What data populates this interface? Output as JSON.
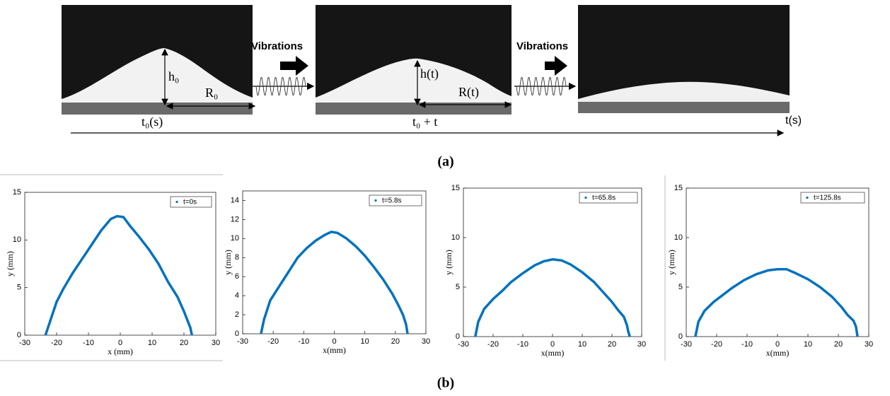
{
  "panel_a": {
    "vibrations_1": "Vibrations",
    "vibrations_2": "Vibrations",
    "h0": "h₀",
    "r0": "R₀",
    "ht": "h(t)",
    "rt": "R(t)",
    "t0": "t₀(s)",
    "t0_plus_t": "t₀ + t",
    "t_axis": "t(s)"
  },
  "captions": {
    "a": "(a)",
    "b": "(b)"
  },
  "chart_data": [
    {
      "type": "line",
      "xlabel": "x (mm)",
      "ylabel": "y (mm)",
      "xlim": [
        -30,
        30
      ],
      "xticks": [
        -30,
        -20,
        -10,
        0,
        10,
        20,
        30
      ],
      "ylim": [
        0,
        15
      ],
      "yticks": [
        0,
        5,
        10,
        15
      ],
      "legend": "upper right",
      "series": [
        {
          "name": "t=0s",
          "color": "#0072bd",
          "x": [
            -23.5,
            -22,
            -20,
            -18,
            -15,
            -12,
            -9,
            -6,
            -3,
            -1,
            1,
            3,
            6,
            9,
            12,
            15,
            18,
            20,
            21.5,
            22,
            22.5
          ],
          "values": [
            0,
            1.5,
            3.5,
            4.8,
            6.5,
            8,
            9.5,
            11,
            12.2,
            12.5,
            12.4,
            11.5,
            10.3,
            9,
            7.5,
            5.6,
            4,
            2.5,
            1.2,
            0.8,
            0
          ]
        }
      ]
    },
    {
      "type": "line",
      "xlabel": "x(mm)",
      "ylabel": "y (mm)",
      "xlim": [
        -30,
        30
      ],
      "xticks": [
        -30,
        -20,
        -10,
        0,
        10,
        20,
        30
      ],
      "ylim": [
        0,
        15
      ],
      "yticks": [
        0,
        2,
        4,
        6,
        8,
        10,
        12,
        14
      ],
      "legend": "upper right",
      "series": [
        {
          "name": "t=5.8s",
          "color": "#0072bd",
          "x": [
            -24,
            -23,
            -21,
            -18,
            -15,
            -12,
            -9,
            -6,
            -3,
            -1,
            1,
            4,
            7,
            10,
            13,
            16,
            19,
            21,
            22.5,
            23.5,
            24
          ],
          "values": [
            0,
            1.5,
            3.5,
            5,
            6.5,
            8,
            9,
            9.8,
            10.4,
            10.7,
            10.6,
            10,
            9.2,
            8.2,
            7,
            5.7,
            4.2,
            3,
            2,
            1,
            0
          ]
        }
      ]
    },
    {
      "type": "line",
      "xlabel": "x(mm)",
      "ylabel": "y (mm)",
      "xlim": [
        -30,
        30
      ],
      "xticks": [
        -30,
        -20,
        -10,
        0,
        10,
        20,
        30
      ],
      "ylim": [
        0,
        15
      ],
      "yticks": [
        0,
        5,
        10,
        15
      ],
      "legend": "upper right",
      "series": [
        {
          "name": "t=65.8s",
          "color": "#0072bd",
          "x": [
            -26,
            -25,
            -23,
            -20,
            -17,
            -14,
            -10,
            -6,
            -3,
            0,
            3,
            6,
            10,
            14,
            17,
            20,
            22,
            24,
            25,
            25.5,
            26
          ],
          "values": [
            0,
            1.5,
            2.8,
            3.8,
            4.6,
            5.5,
            6.4,
            7.2,
            7.6,
            7.8,
            7.7,
            7.3,
            6.5,
            5.5,
            4.5,
            3.5,
            2.7,
            2,
            1.2,
            0.5,
            0
          ]
        }
      ]
    },
    {
      "type": "line",
      "xlabel": "x(mm)",
      "ylabel": "y (mm)",
      "xlim": [
        -30,
        30
      ],
      "xticks": [
        -30,
        -20,
        -10,
        0,
        10,
        20,
        30
      ],
      "ylim": [
        0,
        15
      ],
      "yticks": [
        0,
        5,
        10,
        15
      ],
      "legend": "upper right",
      "series": [
        {
          "name": "t=125.8s",
          "color": "#0072bd",
          "x": [
            -27,
            -26,
            -24,
            -21,
            -18,
            -15,
            -11,
            -7,
            -3,
            0,
            3,
            6,
            10,
            14,
            18,
            21,
            23,
            25,
            25.8,
            26.3
          ],
          "values": [
            0,
            1.5,
            2.6,
            3.5,
            4.2,
            4.9,
            5.7,
            6.3,
            6.7,
            6.8,
            6.8,
            6.4,
            5.8,
            5,
            4,
            3,
            2.2,
            1.6,
            1,
            0
          ]
        }
      ]
    }
  ]
}
